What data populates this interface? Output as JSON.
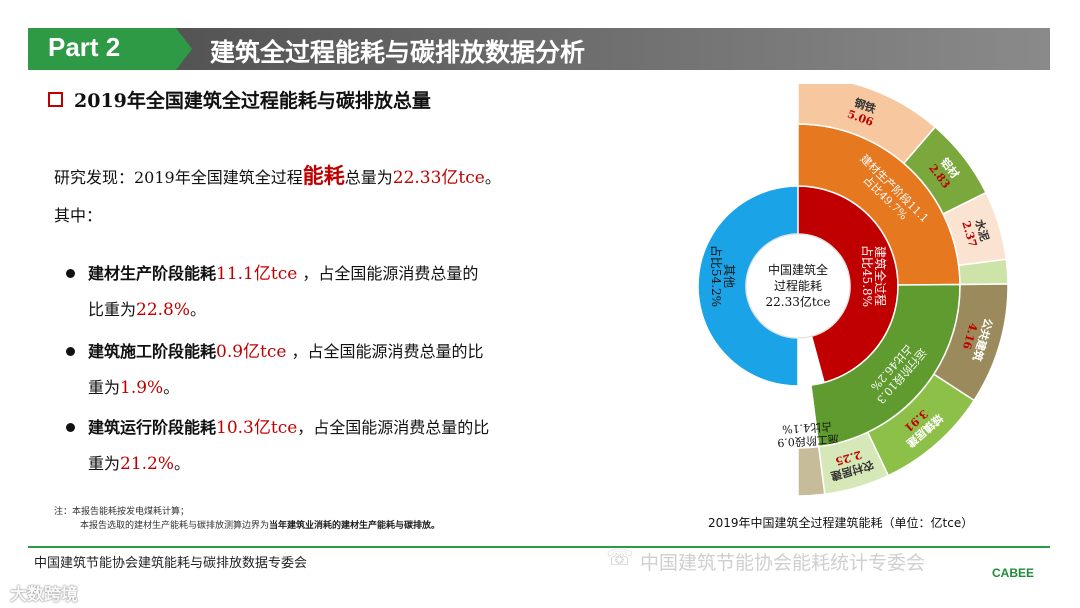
{
  "header": {
    "part": "Part 2",
    "title": "建筑全过程能耗与碳排放数据分析"
  },
  "section_title": "2019年全国建筑全过程能耗与碳排放总量",
  "finding": {
    "prefix": "研究发现：2019年全国建筑全过程",
    "keyword": "能耗",
    "mid": "总量为",
    "value": "22.33亿tce",
    "suffix": "。"
  },
  "among": "其中：",
  "bullets": [
    {
      "label": "建材生产阶段能耗",
      "value": "11.1亿tce",
      "line1_rest": " ，占全国能源消费总量的",
      "line2_pre": "比重为",
      "pct": "22.8%",
      "line2_post": "。"
    },
    {
      "label": "建筑施工阶段能耗",
      "value": "0.9亿tce",
      "line1_rest": " ，占全国能源消费总量的比",
      "line2_pre": "重为",
      "pct": "1.9%",
      "line2_post": "。"
    },
    {
      "label": "建筑运行阶段能耗",
      "value": "10.3亿tce",
      "line1_rest": "，占全国能源消费总量的比",
      "line2_pre": "重为",
      "pct": "21.2%",
      "line2_post": "。"
    }
  ],
  "notes": {
    "line1": "注：本报告能耗按发电煤耗计算；",
    "line2_pre": "本报告选取的建材生产能耗与碳排放测算边界为",
    "line2_bold": "当年建筑业消耗的建材生产能耗与碳排放。"
  },
  "chart_data": {
    "type": "sunburst",
    "center_label": [
      "中国建筑全",
      "过程能耗",
      "22.33亿tce"
    ],
    "caption": "2019年中国建筑全过程建筑能耗（单位：亿tce）",
    "inner_ring": [
      {
        "label": [
          "其他",
          "占比54.2%"
        ],
        "share": 54.2,
        "color": "#1aa3e6"
      },
      {
        "label": [
          "建筑全过程",
          "占比45.8%"
        ],
        "share": 45.8,
        "color": "#c00000"
      }
    ],
    "middle_ring": [
      {
        "label": [
          "建材生产阶段11.1",
          "占比49.7%"
        ],
        "value": 11.1,
        "share": 49.7,
        "color": "#e67820"
      },
      {
        "label": [
          "运行阶段10.3",
          "占比46.2%"
        ],
        "value": 10.3,
        "share": 46.2,
        "color": "#5f9b2f"
      },
      {
        "label": [
          "施工阶段0.9",
          "占比4.1%"
        ],
        "value": 0.9,
        "share": 4.1,
        "color": "#ffffff"
      }
    ],
    "outer_ring": [
      {
        "name": "钢铁",
        "value": "5.06",
        "share": 22.66,
        "color": "#f7c8a0"
      },
      {
        "name": "铝材",
        "value": "2.83",
        "share": 12.67,
        "color": "#7aa83c"
      },
      {
        "name": "水泥",
        "value": "2.37",
        "share": 10.61,
        "color": "#fbe3d2"
      },
      {
        "name": "",
        "value": "",
        "share": 3.76,
        "color": "#cde3a8"
      },
      {
        "name": "公共建筑",
        "value": "4.16",
        "share": 18.64,
        "color": "#9b8a5c"
      },
      {
        "name": "城镇居建",
        "value": "3.91",
        "share": 17.51,
        "color": "#8dc049"
      },
      {
        "name": "农村居建",
        "value": "2.25",
        "share": 10.08,
        "color": "#d6e8b8"
      },
      {
        "name": "",
        "value": "",
        "share": 4.07,
        "color": "#c7bc9a"
      }
    ]
  },
  "footer": {
    "left": "中国建筑节能协会建筑能耗与碳排放数据专委会",
    "right": "中国建筑节能协会能耗统计专委会",
    "logo": "CABEE",
    "watermark": "大数跨境"
  }
}
